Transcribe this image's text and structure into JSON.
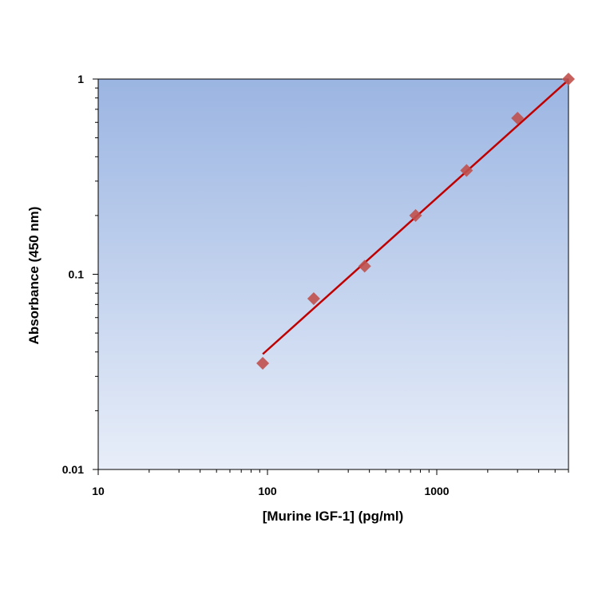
{
  "chart_data": {
    "type": "scatter",
    "xlabel": "[Murine IGF-1] (pg/ml)",
    "ylabel": "Absorbance (450 nm)",
    "x_scale": "log",
    "y_scale": "log",
    "xlim": [
      10,
      6000
    ],
    "ylim": [
      0.01,
      1
    ],
    "x_tick_labels": [
      "10",
      "100",
      "1000"
    ],
    "y_tick_labels": [
      "0.01",
      "0.1",
      "1"
    ],
    "grid": false,
    "legend": "none",
    "series": [
      {
        "x": [
          93.75,
          187.5,
          375,
          750,
          1500,
          3000,
          6000
        ],
        "y": [
          0.035,
          0.075,
          0.11,
          0.2,
          0.34,
          0.63,
          1.0
        ],
        "marker": "diamond",
        "color": "#c0504d"
      }
    ],
    "fit_line": {
      "x": [
        93.75,
        6000
      ],
      "y": [
        0.039,
        0.99
      ],
      "color": "#c00000"
    }
  }
}
